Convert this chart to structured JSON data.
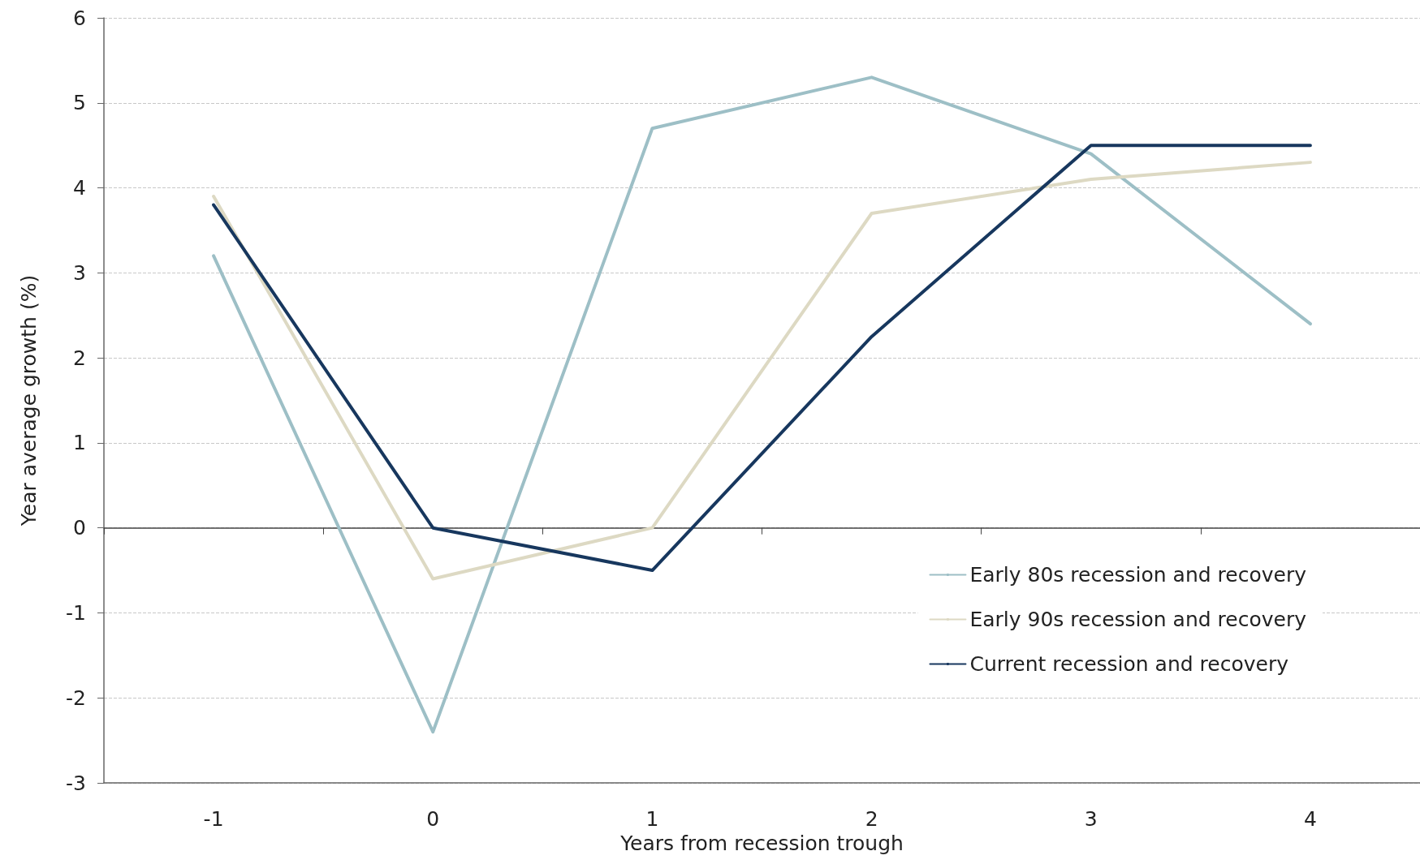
{
  "chart_data": {
    "type": "line",
    "categories": [
      "-1",
      "0",
      "1",
      "2",
      "3",
      "4"
    ],
    "series": [
      {
        "name": "Early 80s recession and recovery",
        "color": "#9dbfc6",
        "values": [
          3.2,
          -2.4,
          4.7,
          5.3,
          4.4,
          2.4
        ]
      },
      {
        "name": "Early 90s recession and recovery",
        "color": "#ddd9c3",
        "values": [
          3.9,
          -0.6,
          0.0,
          3.7,
          4.1,
          4.3
        ]
      },
      {
        "name": "Current recession and recovery",
        "color": "#17375e",
        "values": [
          3.8,
          0.0,
          -0.5,
          2.25,
          4.5,
          4.5
        ]
      }
    ],
    "xlabel": "Years from recession trough",
    "ylabel": "Year average growth (%)",
    "ylim": [
      -3,
      6
    ],
    "yticks": [
      -3,
      -2,
      -1,
      0,
      1,
      2,
      3,
      4,
      5,
      6
    ],
    "grid": "y",
    "legend": "bottom right",
    "marker": "none",
    "line_style": "solid"
  }
}
